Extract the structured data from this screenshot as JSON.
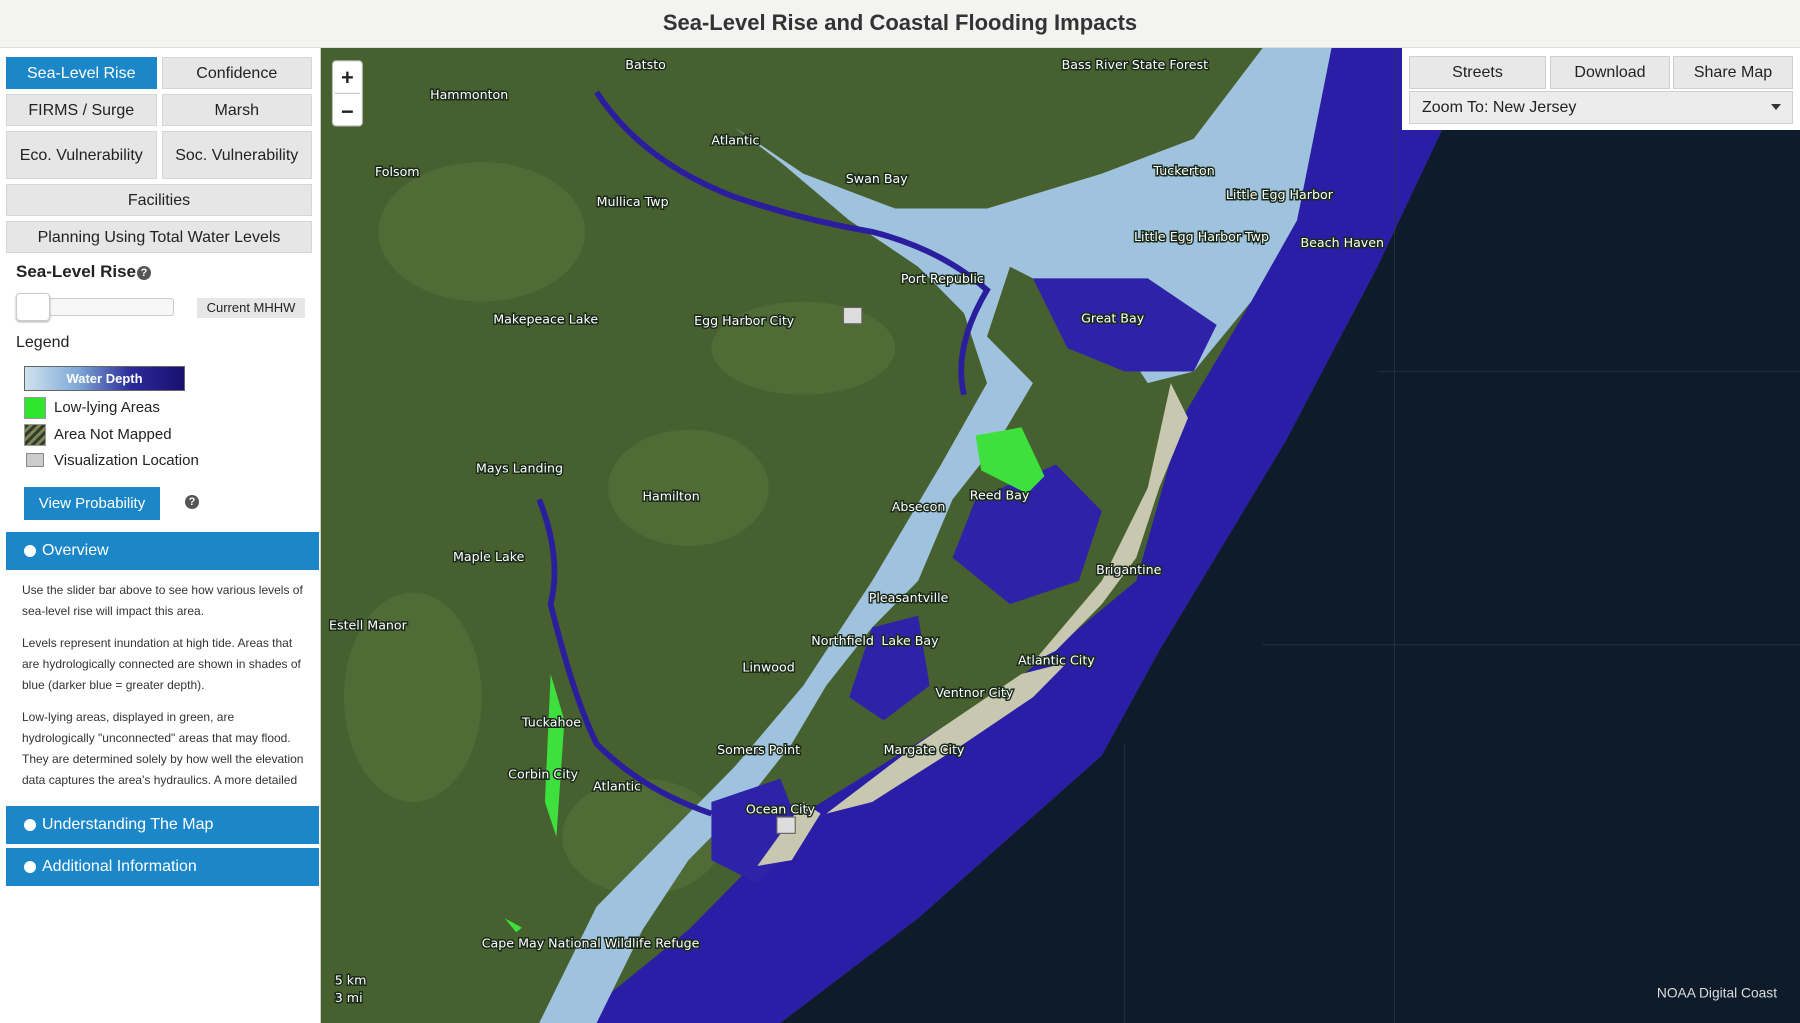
{
  "header": {
    "title": "Sea-Level Rise and Coastal Flooding Impacts"
  },
  "tabs": [
    "Sea-Level Rise",
    "Confidence",
    "FIRMS / Surge",
    "Marsh",
    "Eco. Vulnerability",
    "Soc. Vulnerability",
    "Facilities",
    "Planning Using Total Water Levels"
  ],
  "slider": {
    "title": "Sea-Level Rise",
    "value_label": "Current MHHW"
  },
  "legend": {
    "title": "Legend",
    "items": [
      "Water Depth",
      "Low-lying Areas",
      "Area Not Mapped",
      "Visualization Location"
    ]
  },
  "buttons": {
    "probability": "View Probability"
  },
  "overview": {
    "title": "Overview",
    "paragraphs": [
      "Use the slider bar above to see how various levels of sea-level rise will impact this area.",
      "Levels represent inundation at high tide. Areas that are hydrologically connected are shown in shades of blue (darker blue = greater depth).",
      "Low-lying areas, displayed in green, are hydrologically \"unconnected\" areas that may flood. They are determined solely by how well the elevation data captures the area's hydraulics. A more detailed analysis of these areas is required to"
    ]
  },
  "accordion": [
    "Understanding The Map",
    "Additional Information"
  ],
  "toolbar": {
    "buttons": [
      "Streets",
      "Download",
      "Share Map"
    ],
    "zoom_to": "Zoom To: New Jersey"
  },
  "map": {
    "zoom": [
      "+",
      "−"
    ],
    "labels": [
      "Batsto",
      "Hammonton",
      "Bass River State Forest",
      "Folsom",
      "Mullica Twp",
      "Swan Bay",
      "Tuckerton",
      "Little Egg Harbor",
      "Little Egg Harbor Twp",
      "Port Republic",
      "Beach Haven",
      "Great Bay",
      "Makepeace Lake",
      "Egg Harbor City",
      "Mays Landing",
      "Hamilton",
      "Absecon",
      "Reed Bay",
      "Brigantine",
      "Maple Lake",
      "Estell Manor",
      "Pleasantville",
      "Northfield",
      "Lake Bay",
      "Linwood",
      "Atlantic City",
      "Ventnor City",
      "Tuckahoe",
      "Somers Point",
      "Margate City",
      "Corbin City",
      "Ocean City",
      "Cape May National Wildlife Refuge",
      "Atlantic",
      "Atlantic"
    ],
    "scale": [
      "5 km",
      "3 mi"
    ],
    "attribution": "NOAA Digital Coast"
  }
}
